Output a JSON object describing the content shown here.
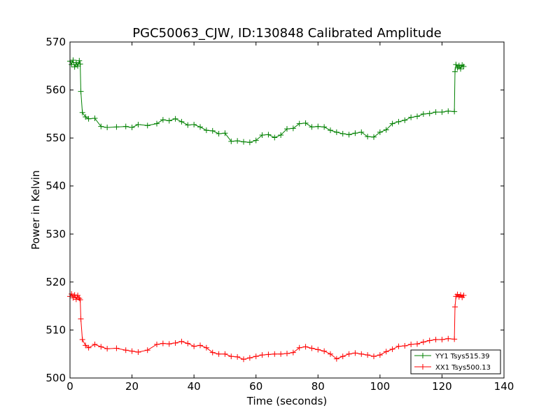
{
  "chart_data": {
    "type": "line",
    "title": "PGC50063_CJW, ID:130848 Calibrated Amplitude",
    "xlabel": "Time (seconds)",
    "ylabel": "Power in Kelvin",
    "xlim": [
      0,
      140
    ],
    "ylim": [
      500,
      570
    ],
    "xticks": [
      0,
      20,
      40,
      60,
      80,
      100,
      120,
      140
    ],
    "yticks": [
      500,
      510,
      520,
      530,
      540,
      550,
      560,
      570
    ],
    "grid": false,
    "legend_position": "lower-right",
    "marker": "plus",
    "series": [
      {
        "name": "YY1 Tsys515.39",
        "color": "#008000",
        "segments": [
          {
            "x": [
              0,
              0.5,
              1,
              1.5,
              2,
              2.5,
              3,
              3.3
            ],
            "y": [
              566,
              565.3,
              566.2,
              564.8,
              565.7,
              565,
              566.1,
              565.4
            ]
          },
          {
            "x": [
              3.5,
              4,
              5,
              6,
              8,
              10,
              12,
              15,
              18,
              20,
              22,
              25,
              28,
              30,
              32,
              34,
              36,
              38,
              40,
              42,
              44,
              46,
              48,
              50,
              52,
              54,
              56,
              58,
              60,
              62,
              64,
              66,
              68,
              70,
              72,
              74,
              76,
              78,
              80,
              82,
              84,
              86,
              88,
              90,
              92,
              94,
              96,
              98,
              100,
              102,
              104,
              106,
              108,
              110,
              112,
              114,
              116,
              118,
              120,
              122,
              124
            ],
            "y": [
              559.7,
              555.3,
              554.4,
              554,
              554.1,
              552.4,
              552.2,
              552.3,
              552.4,
              552.2,
              552.8,
              552.6,
              553,
              553.8,
              553.6,
              554,
              553.4,
              552.7,
              552.8,
              552.3,
              551.6,
              551.5,
              550.9,
              551,
              549.3,
              549.4,
              549.2,
              549.1,
              549.5,
              550.6,
              550.7,
              550.1,
              550.6,
              551.9,
              552,
              553,
              553.1,
              552.3,
              552.4,
              552.3,
              551.6,
              551.2,
              550.9,
              550.7,
              551,
              551.2,
              550.3,
              550.2,
              551.2,
              551.7,
              553,
              553.4,
              553.7,
              554.3,
              554.5,
              555,
              555.1,
              555.4,
              555.4,
              555.6,
              555.5
            ]
          },
          {
            "x": [
              124.2,
              124.5,
              125,
              125.5,
              126,
              126.5,
              127
            ],
            "y": [
              563.8,
              565.3,
              564.6,
              565.1,
              564.4,
              565.2,
              564.9
            ]
          }
        ]
      },
      {
        "name": "XX1 Tsys500.13",
        "color": "#ff0000",
        "segments": [
          {
            "x": [
              0,
              0.5,
              1,
              1.5,
              2,
              2.5,
              3,
              3.3
            ],
            "y": [
              517,
              517.5,
              516.7,
              517.3,
              516.4,
              517.2,
              516.6,
              516.3
            ]
          },
          {
            "x": [
              3.5,
              4,
              5,
              6,
              8,
              10,
              12,
              15,
              18,
              20,
              22,
              25,
              28,
              30,
              32,
              34,
              36,
              38,
              40,
              42,
              44,
              46,
              48,
              50,
              52,
              54,
              56,
              58,
              60,
              62,
              64,
              66,
              68,
              70,
              72,
              74,
              76,
              78,
              80,
              82,
              84,
              86,
              88,
              90,
              92,
              94,
              96,
              98,
              100,
              102,
              104,
              106,
              108,
              110,
              112,
              114,
              116,
              118,
              120,
              122,
              124
            ],
            "y": [
              512.3,
              508,
              506.8,
              506.3,
              507,
              506.5,
              506.1,
              506.2,
              505.8,
              505.6,
              505.4,
              505.8,
              507,
              507.2,
              507.1,
              507.3,
              507.6,
              507.2,
              506.6,
              506.8,
              506.3,
              505.3,
              505,
              505,
              504.5,
              504.4,
              503.9,
              504.2,
              504.5,
              504.8,
              504.9,
              505,
              505,
              505.1,
              505.3,
              506.3,
              506.5,
              506.2,
              505.9,
              505.6,
              505,
              504,
              504.5,
              505,
              505.2,
              505,
              504.8,
              504.5,
              504.8,
              505.5,
              506,
              506.6,
              506.7,
              507,
              507.1,
              507.5,
              507.8,
              508,
              508,
              508.2,
              508.1
            ]
          },
          {
            "x": [
              124.2,
              124.5,
              125,
              125.5,
              126,
              126.5,
              127
            ],
            "y": [
              514.8,
              517,
              517.4,
              516.9,
              517.3,
              516.8,
              517.2
            ]
          }
        ]
      }
    ]
  }
}
